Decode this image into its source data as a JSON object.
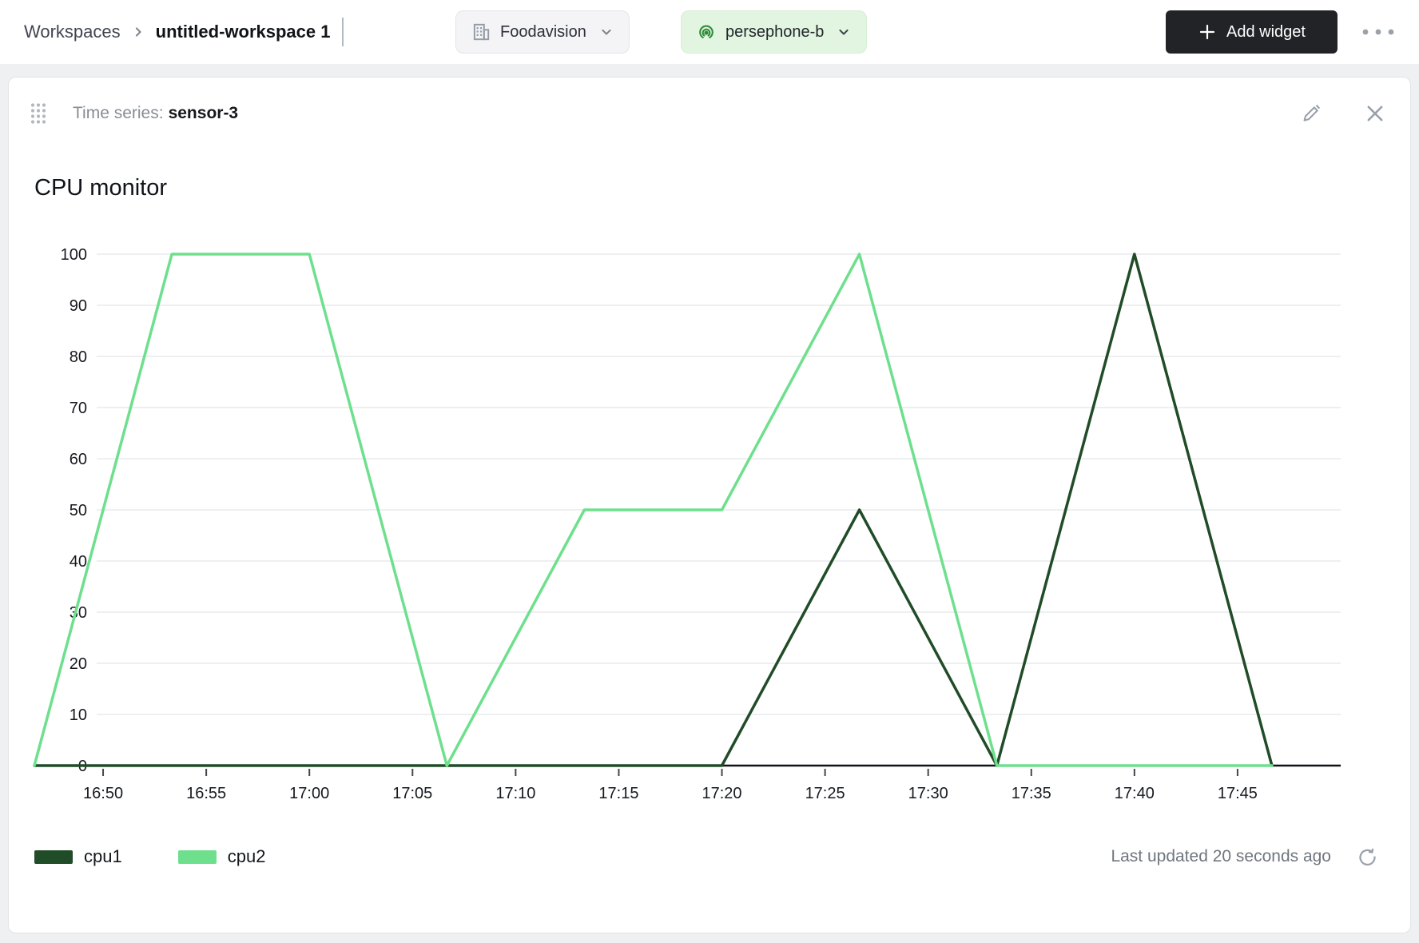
{
  "header": {
    "breadcrumb": {
      "root": "Workspaces",
      "current": "untitled-workspace 1"
    },
    "org_selector": {
      "label": "Foodavision"
    },
    "device_selector": {
      "label": "persephone-b"
    },
    "add_widget": {
      "label": "Add widget"
    }
  },
  "widget": {
    "kind_label": "Time series:",
    "name": "sensor-3",
    "last_updated": "Last updated 20 seconds ago"
  },
  "chart_data": {
    "type": "line",
    "title": "CPU monitor",
    "x": [
      "16:46:40",
      "16:53:20",
      "17:00:00",
      "17:06:40",
      "17:13:20",
      "17:20:00",
      "17:26:40",
      "17:33:20",
      "17:40:00",
      "17:46:40"
    ],
    "x_range": [
      "16:46:40",
      "17:50:00"
    ],
    "x_ticks": [
      "16:50",
      "16:55",
      "17:00",
      "17:05",
      "17:10",
      "17:15",
      "17:20",
      "17:25",
      "17:30",
      "17:35",
      "17:40",
      "17:45"
    ],
    "y_range": [
      0,
      100
    ],
    "y_ticks": [
      0,
      10,
      20,
      30,
      40,
      50,
      60,
      70,
      80,
      90,
      100
    ],
    "grid": "horizontal",
    "legend_position": "bottom-left",
    "series": [
      {
        "name": "cpu1",
        "color": "#214c28",
        "values": [
          0,
          0,
          0,
          0,
          0,
          0,
          50,
          0,
          100,
          0
        ]
      },
      {
        "name": "cpu2",
        "color": "#6ee08d",
        "values": [
          0,
          100,
          100,
          0,
          50,
          50,
          100,
          0,
          0,
          0
        ]
      }
    ]
  }
}
